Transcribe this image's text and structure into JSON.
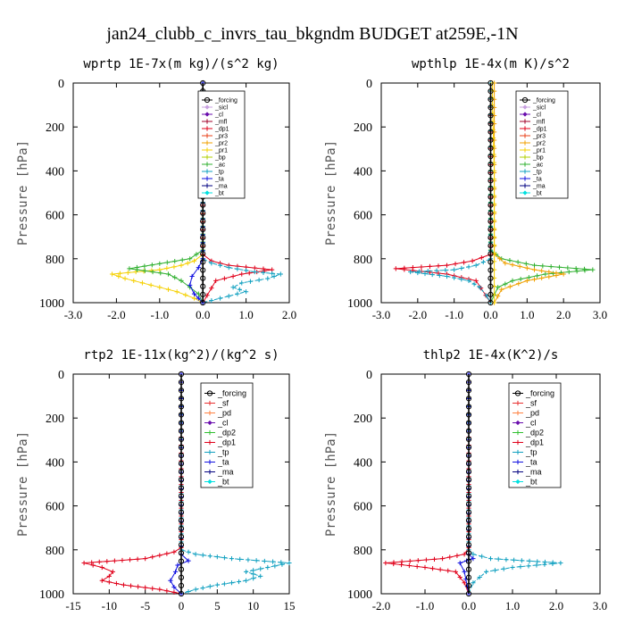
{
  "figure_title": "jan24_clubb_c_invrs_tau_bkgndm  BUDGET at259E,-1N",
  "colors": {
    "_forcing": "#000000",
    "_sicl": "#c8a0e0",
    "_cl": "#6a0dad",
    "_mfl": "#a0002a",
    "_dp1": "#e0001a",
    "_pr3": "#e8401a",
    "_pr2": "#f0a000",
    "_pr1": "#f5d000",
    "_bp": "#b0d000",
    "_ac": "#30b030",
    "_tp": "#10a0c0",
    "_ta": "#1010e0",
    "_ma": "#000080",
    "_bt": "#00e0e0",
    "_sf": "#e83030",
    "_pd": "#ff8040",
    "_dp2": "#30c030"
  },
  "chart_data": [
    {
      "type": "line",
      "title": "wprtp   1E-7x(m kg)/(s^2 kg)",
      "ylabel": "Pressure  [hPa]",
      "xlim": [
        -3.0,
        2.0
      ],
      "ylim": [
        1000,
        0
      ],
      "xticks": [
        "-3.0",
        "-2.0",
        "-1.0",
        "0.0",
        "1.0",
        "2.0"
      ],
      "xtick_values": [
        -3,
        -2,
        -1,
        0,
        1,
        2
      ],
      "yticks": [
        "0",
        "200",
        "400",
        "600",
        "800",
        "1000"
      ],
      "ytick_values": [
        0,
        200,
        400,
        600,
        800,
        1000
      ],
      "legend_position": "top-right",
      "legend": [
        "_forcing",
        "_sicl",
        "_cl",
        "_mfl",
        "_dp1",
        "_pr3",
        "_pr2",
        "_pr1",
        "_bp",
        "_ac",
        "_tp",
        "_ta",
        "_ma",
        "_bt"
      ],
      "series": [
        {
          "name": "_pr1",
          "x": [
            0,
            0,
            -0.2,
            -0.5,
            -1.0,
            -2.1,
            -1.8,
            -1.2,
            -0.6,
            -0.2,
            0
          ],
          "y": [
            0,
            780,
            810,
            830,
            850,
            870,
            890,
            920,
            950,
            980,
            1000
          ]
        },
        {
          "name": "_ac",
          "x": [
            0,
            0,
            -0.3,
            -1.7,
            -0.8,
            -0.5,
            -0.3,
            -0.1,
            0
          ],
          "y": [
            0,
            760,
            800,
            845,
            870,
            900,
            930,
            960,
            1000
          ]
        },
        {
          "name": "_dp1",
          "x": [
            0,
            0,
            0.2,
            0.6,
            1.6,
            0.9,
            0.3,
            0
          ],
          "y": [
            0,
            780,
            810,
            830,
            850,
            870,
            900,
            1000
          ]
        },
        {
          "name": "_tp",
          "x": [
            0,
            0,
            0.2,
            0.6,
            1.2,
            1.8,
            1.5,
            0.9,
            0.7,
            1.0,
            0.6,
            0.2,
            0
          ],
          "y": [
            0,
            800,
            820,
            840,
            860,
            870,
            890,
            910,
            930,
            950,
            970,
            990,
            1000
          ]
        },
        {
          "name": "_ta",
          "x": [
            0,
            0,
            -0.1,
            -0.25,
            -0.3,
            -0.2,
            0
          ],
          "y": [
            0,
            800,
            840,
            880,
            920,
            960,
            1000
          ]
        },
        {
          "name": "_forcing",
          "x": [
            0,
            0
          ],
          "y": [
            0,
            1000
          ]
        }
      ]
    },
    {
      "type": "line",
      "title": "wpthlp   1E-4x(m K)/s^2",
      "ylabel": "Pressure  [hPa]",
      "xlim": [
        -3.0,
        3.0
      ],
      "ylim": [
        1000,
        0
      ],
      "xticks": [
        "-3.0",
        "-2.0",
        "-1.0",
        "0.0",
        "1.0",
        "2.0",
        "3.0"
      ],
      "xtick_values": [
        -3,
        -2,
        -1,
        0,
        1,
        2,
        3
      ],
      "yticks": [
        "0",
        "200",
        "400",
        "600",
        "800",
        "1000"
      ],
      "ytick_values": [
        0,
        200,
        400,
        600,
        800,
        1000
      ],
      "legend_position": "top-right",
      "legend": [
        "_forcing",
        "_sicl",
        "_cl",
        "_mfl",
        "_dp1",
        "_pr3",
        "_pr2",
        "_pr1",
        "_bp",
        "_ac",
        "_tp",
        "_ta",
        "_ma",
        "_bt"
      ],
      "series": [
        {
          "name": "_ac",
          "x": [
            0,
            0,
            0.3,
            1.2,
            2.8,
            1.5,
            0.6,
            0.2,
            0
          ],
          "y": [
            0,
            760,
            800,
            830,
            850,
            870,
            900,
            930,
            1000
          ]
        },
        {
          "name": "_pr2",
          "x": [
            0.1,
            0.1,
            0.4,
            1.2,
            2.0,
            1.0,
            0.3,
            0.1
          ],
          "y": [
            0,
            780,
            820,
            850,
            870,
            900,
            940,
            1000
          ]
        },
        {
          "name": "_dp1",
          "x": [
            0,
            0,
            -0.5,
            -1.2,
            -2.6,
            -1.2,
            -0.4,
            0
          ],
          "y": [
            0,
            780,
            810,
            830,
            845,
            870,
            900,
            1000
          ]
        },
        {
          "name": "_tp",
          "x": [
            0,
            0,
            -0.4,
            -1.0,
            -2.2,
            -1.2,
            -0.6,
            -0.3,
            -0.1,
            0
          ],
          "y": [
            0,
            800,
            830,
            850,
            860,
            880,
            900,
            930,
            970,
            1000
          ]
        },
        {
          "name": "_pr1",
          "x": [
            0.05,
            0.05,
            0.1,
            0.1
          ],
          "y": [
            0,
            100,
            400,
            1000
          ]
        },
        {
          "name": "_forcing",
          "x": [
            0,
            0
          ],
          "y": [
            0,
            1000
          ]
        }
      ]
    },
    {
      "type": "line",
      "title": "rtp2   1E-11x(kg^2)/(kg^2 s)",
      "ylabel": "Pressure  [hPa]",
      "xlim": [
        -15,
        15
      ],
      "ylim": [
        1000,
        0
      ],
      "xticks": [
        "-15",
        "-10",
        "-5",
        "0",
        "5",
        "10",
        "15"
      ],
      "xtick_values": [
        -15,
        -10,
        -5,
        0,
        5,
        10,
        15
      ],
      "yticks": [
        "0",
        "200",
        "400",
        "600",
        "800",
        "1000"
      ],
      "ytick_values": [
        0,
        200,
        400,
        600,
        800,
        1000
      ],
      "legend_position": "top-right",
      "legend": [
        "_forcing",
        "_sf",
        "_pd",
        "_cl",
        "_dp2",
        "_dp1",
        "_tp",
        "_ta",
        "_ma",
        "_bt"
      ],
      "series": [
        {
          "name": "_dp1",
          "x": [
            0,
            0,
            -1,
            -5,
            -13.5,
            -11,
            -9.5,
            -10,
            -11,
            -8,
            -3,
            0
          ],
          "y": [
            0,
            790,
            810,
            840,
            860,
            880,
            900,
            920,
            940,
            960,
            980,
            1000
          ]
        },
        {
          "name": "_tp",
          "x": [
            0,
            0,
            2,
            7,
            15,
            12,
            9,
            11,
            9,
            5,
            2,
            0
          ],
          "y": [
            0,
            800,
            820,
            840,
            860,
            880,
            900,
            920,
            940,
            960,
            980,
            1000
          ]
        },
        {
          "name": "_ta",
          "x": [
            0,
            0,
            1,
            -0.5,
            -0.8,
            -1.5,
            -1,
            0
          ],
          "y": [
            0,
            820,
            850,
            870,
            900,
            940,
            970,
            1000
          ]
        },
        {
          "name": "_forcing",
          "x": [
            0,
            0
          ],
          "y": [
            0,
            1000
          ]
        }
      ]
    },
    {
      "type": "line",
      "title": "thlp2   1E-4x(K^2)/s",
      "ylabel": "Pressure  [hPa]",
      "xlim": [
        -2.0,
        3.0
      ],
      "ylim": [
        1000,
        0
      ],
      "xticks": [
        "-2.0",
        "-1.0",
        "0.0",
        "1.0",
        "2.0",
        "3.0"
      ],
      "xtick_values": [
        -2,
        -1,
        0,
        1,
        2,
        3
      ],
      "yticks": [
        "0",
        "200",
        "400",
        "600",
        "800",
        "1000"
      ],
      "ytick_values": [
        0,
        200,
        400,
        600,
        800,
        1000
      ],
      "legend_position": "top-right",
      "legend": [
        "_forcing",
        "_sf",
        "_pd",
        "_cl",
        "_dp2",
        "_dp1",
        "_tp",
        "_ta",
        "_ma",
        "_bt"
      ],
      "series": [
        {
          "name": "_dp1",
          "x": [
            0,
            0,
            -0.1,
            -0.6,
            -1.9,
            -1.0,
            -0.3,
            -0.1,
            0
          ],
          "y": [
            0,
            790,
            820,
            840,
            860,
            880,
            900,
            950,
            1000
          ]
        },
        {
          "name": "_tp",
          "x": [
            0,
            0,
            0.1,
            0.5,
            2.1,
            1.0,
            0.4,
            0.1,
            0
          ],
          "y": [
            0,
            800,
            820,
            840,
            860,
            880,
            900,
            950,
            1000
          ]
        },
        {
          "name": "_ta",
          "x": [
            0,
            0,
            0.1,
            -0.2,
            -0.1,
            0
          ],
          "y": [
            0,
            820,
            840,
            860,
            900,
            1000
          ]
        },
        {
          "name": "_forcing",
          "x": [
            0,
            0
          ],
          "y": [
            0,
            1000
          ]
        }
      ]
    }
  ]
}
